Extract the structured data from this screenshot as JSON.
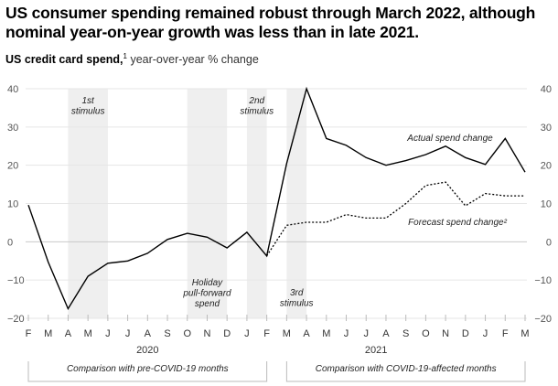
{
  "title": "US consumer spending remained robust through March 2022, although nominal year-on-year growth was less than in late 2021.",
  "subtitle": {
    "bold": "US credit card spend,",
    "footnote": "1",
    "rest": " year-over-year % change"
  },
  "chart_data": {
    "type": "line",
    "title": "US credit card spend, year-over-year % change",
    "xlabel": "",
    "ylabel": "",
    "ylim": [
      -20,
      40
    ],
    "yticks": [
      40,
      30,
      20,
      10,
      0,
      -10,
      -20
    ],
    "ytick_labels": [
      "40",
      "30",
      "20",
      "10",
      "0",
      "−10",
      "−20"
    ],
    "grid": true,
    "x": [
      "F",
      "M",
      "A",
      "M",
      "J",
      "J",
      "A",
      "S",
      "O",
      "N",
      "D",
      "J",
      "F",
      "M",
      "A",
      "M",
      "J",
      "J",
      "A",
      "S",
      "O",
      "N",
      "D",
      "J",
      "F",
      "M"
    ],
    "years": [
      {
        "label": "2020",
        "center_index": 6
      },
      {
        "label": "2021",
        "center_index": 17.5
      }
    ],
    "series": [
      {
        "name": "Actual spend change",
        "style": "solid",
        "start_index": 0,
        "values": [
          9.6,
          -5.3,
          -17.5,
          -9,
          -5.6,
          -5,
          -3,
          0.6,
          2.2,
          1.2,
          -1.6,
          2.5,
          -3.7,
          20.5,
          40,
          27,
          25.2,
          22,
          20,
          21.2,
          22.8,
          25,
          22,
          20.2,
          27,
          18.2
        ]
      },
      {
        "name": "Forecast spend change²",
        "style": "dotted",
        "start_index": 12,
        "values": [
          -3.7,
          4.3,
          5.1,
          5.1,
          7.1,
          6.2,
          6.2,
          10,
          14.7,
          15.6,
          9.4,
          12.6,
          12,
          12
        ]
      }
    ],
    "series_labels": [
      {
        "text": "Actual spend change",
        "series": 0
      },
      {
        "text": "Forecast spend change²",
        "series": 1
      }
    ],
    "shaded_periods": [
      {
        "label": [
          "1st",
          "stimulus"
        ],
        "start_index": 2,
        "end_index": 4,
        "label_position": "top"
      },
      {
        "label": [
          "Holiday",
          "pull-forward",
          "spend"
        ],
        "start_index": 8,
        "end_index": 10,
        "label_position": "bottom"
      },
      {
        "label": [
          "2nd",
          "stimulus"
        ],
        "start_index": 11,
        "end_index": 12,
        "label_position": "top"
      },
      {
        "label": [
          "3rd",
          "stimulus"
        ],
        "start_index": 13,
        "end_index": 14,
        "label_position": "bottom"
      }
    ],
    "comparison_brackets": [
      {
        "label": "Comparison with pre-COVID-19 months",
        "start_index": 0,
        "end_index": 12
      },
      {
        "label": "Comparison with COVID-19-affected months",
        "start_index": 13,
        "end_index": 25
      }
    ]
  },
  "colors": {
    "line": "#000000",
    "shade": "#efefef",
    "grid": "#e6e6e6",
    "zero": "#c8c8c8",
    "tick": "#bbbbbb"
  }
}
